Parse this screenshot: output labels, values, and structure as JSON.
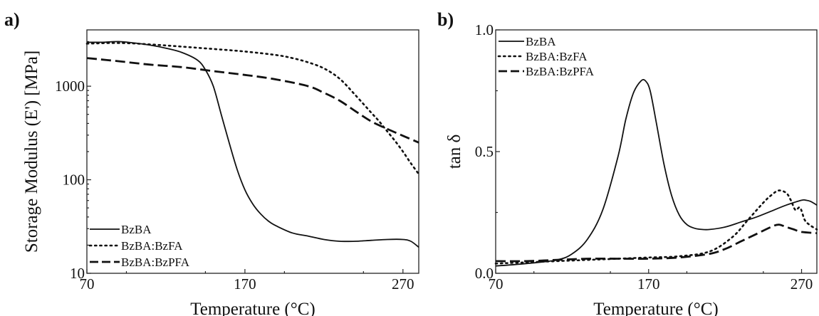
{
  "chart_data": [
    {
      "panel_label": "a)",
      "type": "line",
      "xlabel": "Temperature (°C)",
      "ylabel": "Storage Modulus (E') [MPa]",
      "xlim": [
        70,
        280
      ],
      "ylim": [
        10,
        4000
      ],
      "yscale": "log",
      "xticks": [
        {
          "value": 70,
          "label": "70"
        },
        {
          "value": 170,
          "label": "170"
        },
        {
          "value": 270,
          "label": "270"
        }
      ],
      "yticks": [
        {
          "value": 10,
          "label": "10"
        },
        {
          "value": 100,
          "label": "100"
        },
        {
          "value": 1000,
          "label": "1000"
        }
      ],
      "legend_position": "bottom-left",
      "series": [
        {
          "name": "BzBA",
          "style": "solid",
          "x": [
            70,
            80,
            90,
            100,
            110,
            120,
            130,
            140,
            145,
            150,
            155,
            160,
            165,
            170,
            175,
            180,
            185,
            190,
            200,
            210,
            220,
            230,
            240,
            250,
            260,
            270,
            275,
            280
          ],
          "y": [
            2950,
            2950,
            3000,
            2900,
            2750,
            2550,
            2300,
            1900,
            1500,
            1000,
            500,
            250,
            130,
            78,
            55,
            43,
            36,
            32,
            27,
            25,
            23,
            22,
            22,
            22.5,
            23,
            23,
            22,
            19
          ]
        },
        {
          "name": "BzBA:BzFA",
          "style": "dotted",
          "x": [
            70,
            90,
            110,
            130,
            150,
            170,
            190,
            200,
            210,
            220,
            230,
            240,
            250,
            255,
            260,
            265,
            270,
            275,
            280
          ],
          "y": [
            2850,
            2900,
            2800,
            2650,
            2500,
            2350,
            2150,
            2000,
            1800,
            1550,
            1200,
            800,
            520,
            420,
            330,
            260,
            200,
            150,
            115
          ]
        },
        {
          "name": "BzBA:BzPFA",
          "style": "dashed",
          "x": [
            70,
            90,
            110,
            130,
            150,
            170,
            190,
            210,
            220,
            230,
            240,
            250,
            260,
            270,
            280
          ],
          "y": [
            2000,
            1850,
            1700,
            1600,
            1450,
            1320,
            1180,
            1000,
            850,
            700,
            540,
            420,
            350,
            295,
            250
          ]
        }
      ]
    },
    {
      "panel_label": "b)",
      "type": "line",
      "xlabel": "Temperature (°C)",
      "ylabel": "tan δ",
      "xlim": [
        70,
        280
      ],
      "ylim": [
        0.0,
        1.0
      ],
      "xticks": [
        {
          "value": 70,
          "label": "70"
        },
        {
          "value": 170,
          "label": "170"
        },
        {
          "value": 270,
          "label": "270"
        }
      ],
      "yticks": [
        {
          "value": 0.0,
          "label": "0.0"
        },
        {
          "value": 0.5,
          "label": "0.5"
        },
        {
          "value": 1.0,
          "label": "1.0"
        }
      ],
      "legend_position": "top-left",
      "series": [
        {
          "name": "BzBA",
          "style": "solid",
          "x": [
            70,
            90,
            110,
            120,
            130,
            140,
            150,
            155,
            160,
            165,
            168,
            171,
            175,
            180,
            185,
            190,
            195,
            200,
            205,
            210,
            220,
            230,
            240,
            250,
            260,
            270,
            273,
            276,
            280
          ],
          "y": [
            0.03,
            0.04,
            0.055,
            0.08,
            0.14,
            0.26,
            0.48,
            0.63,
            0.74,
            0.79,
            0.79,
            0.75,
            0.62,
            0.45,
            0.32,
            0.24,
            0.2,
            0.185,
            0.18,
            0.18,
            0.19,
            0.21,
            0.23,
            0.255,
            0.28,
            0.3,
            0.3,
            0.295,
            0.28
          ]
        },
        {
          "name": "BzBA:BzFA",
          "style": "dotted",
          "x": [
            70,
            90,
            110,
            130,
            150,
            170,
            190,
            210,
            225,
            235,
            245,
            250,
            255,
            260,
            263,
            266,
            269,
            272,
            275,
            280
          ],
          "y": [
            0.04,
            0.045,
            0.05,
            0.055,
            0.06,
            0.065,
            0.07,
            0.09,
            0.15,
            0.22,
            0.29,
            0.32,
            0.34,
            0.33,
            0.3,
            0.26,
            0.27,
            0.22,
            0.2,
            0.18
          ]
        },
        {
          "name": "BzBA:BzPFA",
          "style": "dashed",
          "x": [
            70,
            90,
            110,
            130,
            150,
            170,
            190,
            210,
            220,
            230,
            240,
            250,
            255,
            260,
            265,
            270,
            280
          ],
          "y": [
            0.05,
            0.05,
            0.055,
            0.06,
            0.06,
            0.06,
            0.065,
            0.08,
            0.1,
            0.13,
            0.16,
            0.19,
            0.2,
            0.19,
            0.18,
            0.17,
            0.165
          ]
        }
      ]
    }
  ]
}
